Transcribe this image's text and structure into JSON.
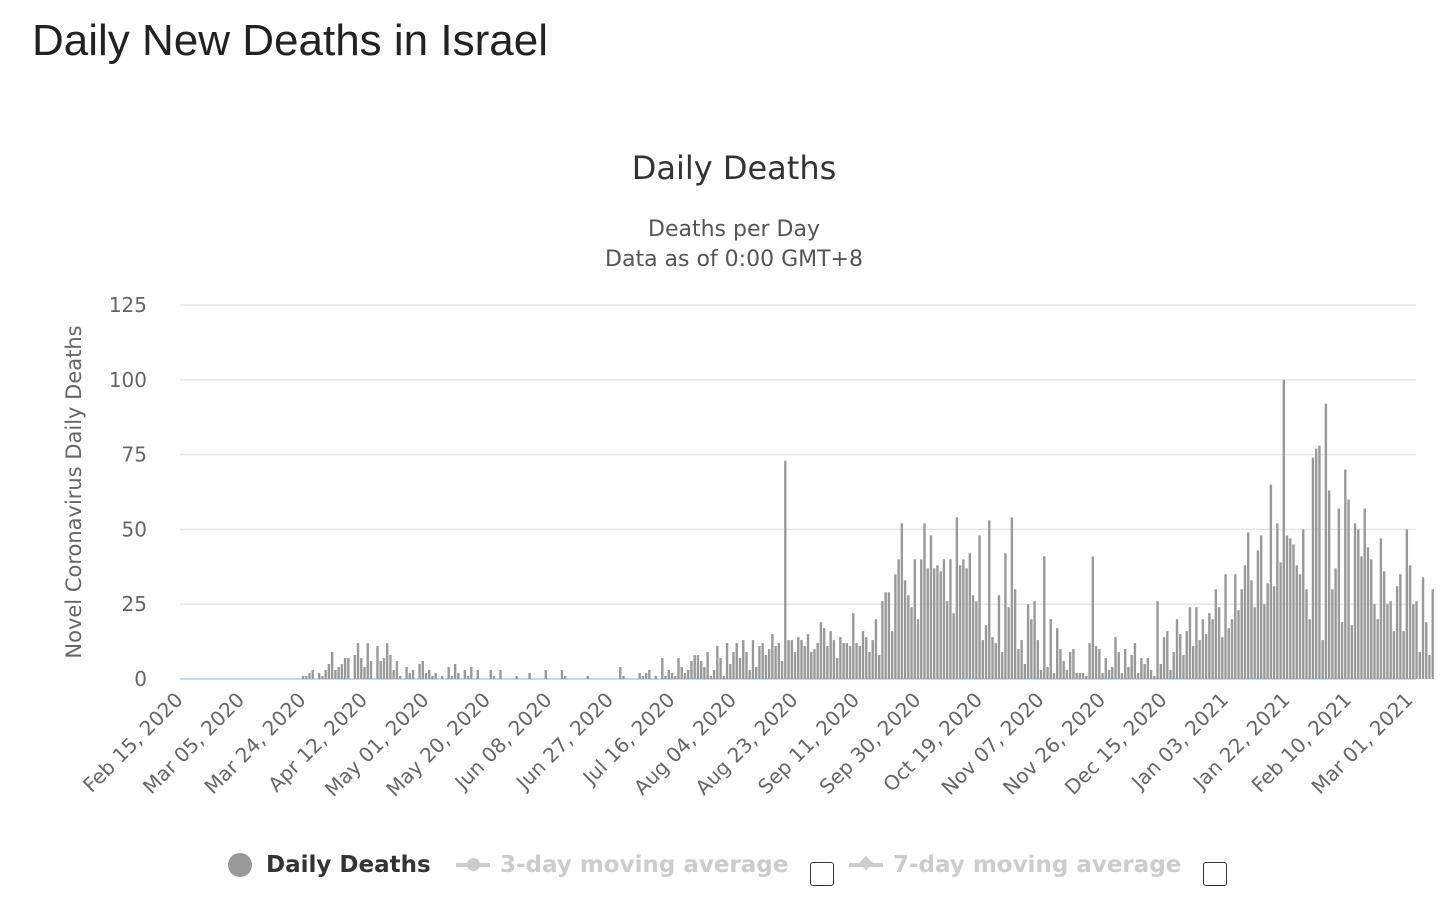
{
  "page_title": "Daily New Deaths in Israel",
  "chart_data": {
    "type": "bar",
    "title": "Daily Deaths",
    "subtitle": [
      "Deaths per Day",
      "Data as of 0:00 GMT+8"
    ],
    "xlabel": "",
    "ylabel": "Novel Coronavirus Daily Deaths",
    "start_date": "2020-02-15",
    "ylim": [
      0,
      125
    ],
    "yticks": [
      "0",
      "25",
      "50",
      "75",
      "100",
      "125"
    ],
    "xticks": [
      "Feb 15, 2020",
      "Mar 05, 2020",
      "Mar 24, 2020",
      "Apr 12, 2020",
      "May 01, 2020",
      "May 20, 2020",
      "Jun 08, 2020",
      "Jun 27, 2020",
      "Jul 16, 2020",
      "Aug 04, 2020",
      "Aug 23, 2020",
      "Sep 11, 2020",
      "Sep 30, 2020",
      "Oct 19, 2020",
      "Nov 07, 2020",
      "Nov 26, 2020",
      "Dec 15, 2020",
      "Jan 03, 2021",
      "Jan 22, 2021",
      "Feb 10, 2021",
      "Mar 01, 2021"
    ],
    "xtick_interval_days": 19,
    "grid": true,
    "bar_color": "#999999",
    "values": [
      0,
      0,
      0,
      0,
      0,
      0,
      0,
      0,
      0,
      0,
      0,
      0,
      0,
      0,
      0,
      0,
      0,
      0,
      0,
      0,
      0,
      0,
      0,
      0,
      0,
      0,
      0,
      0,
      0,
      0,
      0,
      0,
      0,
      0,
      0,
      0,
      0,
      0,
      1,
      1,
      2,
      3,
      0,
      2,
      1,
      3,
      5,
      9,
      3,
      4,
      5,
      7,
      7,
      0,
      8,
      12,
      7,
      4,
      12,
      6,
      0,
      11,
      6,
      7,
      12,
      8,
      3,
      6,
      1,
      0,
      4,
      2,
      3,
      0,
      5,
      6,
      2,
      3,
      1,
      2,
      0,
      1,
      0,
      4,
      1,
      5,
      2,
      0,
      3,
      1,
      4,
      0,
      3,
      0,
      0,
      0,
      3,
      1,
      0,
      3,
      0,
      0,
      0,
      0,
      1,
      0,
      0,
      0,
      2,
      0,
      0,
      0,
      0,
      3,
      0,
      0,
      0,
      0,
      3,
      1,
      0,
      0,
      0,
      0,
      0,
      0,
      1,
      0,
      0,
      0,
      0,
      0,
      0,
      0,
      0,
      0,
      4,
      1,
      0,
      0,
      0,
      0,
      2,
      1,
      2,
      3,
      0,
      1,
      0,
      7,
      1,
      3,
      2,
      1,
      7,
      4,
      2,
      3,
      6,
      8,
      8,
      6,
      4,
      9,
      1,
      3,
      11,
      7,
      1,
      12,
      5,
      9,
      12,
      7,
      13,
      9,
      3,
      13,
      4,
      11,
      12,
      8,
      10,
      15,
      11,
      12,
      6,
      73,
      13,
      13,
      9,
      14,
      13,
      11,
      15,
      9,
      10,
      12,
      19,
      17,
      11,
      16,
      13,
      7,
      14,
      12,
      12,
      11,
      22,
      12,
      11,
      16,
      14,
      9,
      13,
      20,
      8,
      26,
      29,
      29,
      16,
      35,
      40,
      52,
      33,
      28,
      24,
      40,
      20,
      40,
      52,
      37,
      48,
      37,
      38,
      36,
      40,
      26,
      40,
      22,
      54,
      38,
      40,
      37,
      42,
      28,
      26,
      48,
      13,
      18,
      53,
      14,
      12,
      28,
      9,
      42,
      24,
      54,
      30,
      10,
      13,
      5,
      25,
      20,
      26,
      13,
      3,
      41,
      4,
      20,
      2,
      17,
      10,
      6,
      3,
      9,
      10,
      2,
      2,
      2,
      1,
      12,
      41,
      11,
      10,
      2,
      7,
      3,
      4,
      14,
      9,
      2,
      10,
      4,
      8,
      12,
      2,
      7,
      5,
      7,
      3,
      1,
      26,
      5,
      14,
      16,
      3,
      9,
      20,
      15,
      8,
      16,
      24,
      11,
      24,
      13,
      20,
      15,
      22,
      20,
      30,
      24,
      14,
      35,
      17,
      20,
      35,
      23,
      30,
      38,
      49,
      33,
      24,
      43,
      48,
      25,
      32,
      65,
      31,
      52,
      39,
      100,
      48,
      47,
      45,
      38,
      35,
      50,
      30,
      20,
      74,
      77,
      78,
      13,
      92,
      63,
      30,
      37,
      57,
      19,
      70,
      60,
      18,
      52,
      50,
      41,
      57,
      44,
      40,
      25,
      20,
      47,
      36,
      25,
      26,
      16,
      31,
      35,
      16,
      50,
      38,
      25,
      26,
      9,
      34,
      19,
      8,
      30
    ],
    "legend": [
      {
        "label": "Daily Deaths",
        "enabled": true,
        "color": "#999999"
      },
      {
        "label": "3-day moving average",
        "enabled": false,
        "color": "#cccccc"
      },
      {
        "label": "7-day moving average",
        "enabled": false,
        "color": "#cccccc"
      }
    ],
    "legend_placement": "bottom"
  }
}
